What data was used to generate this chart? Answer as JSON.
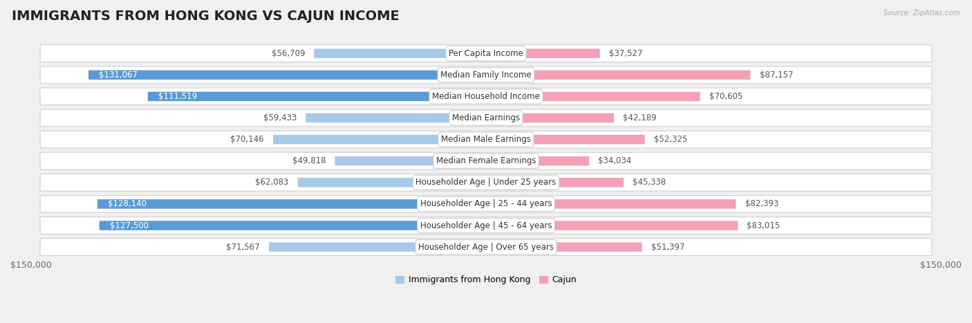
{
  "title": "IMMIGRANTS FROM HONG KONG VS CAJUN INCOME",
  "source": "Source: ZipAtlas.com",
  "categories": [
    "Per Capita Income",
    "Median Family Income",
    "Median Household Income",
    "Median Earnings",
    "Median Male Earnings",
    "Median Female Earnings",
    "Householder Age | Under 25 years",
    "Householder Age | 25 - 44 years",
    "Householder Age | 45 - 64 years",
    "Householder Age | Over 65 years"
  ],
  "hk_values": [
    56709,
    131067,
    111519,
    59433,
    70146,
    49818,
    62083,
    128140,
    127500,
    71567
  ],
  "cajun_values": [
    37527,
    87157,
    70605,
    42189,
    52325,
    34034,
    45338,
    82393,
    83015,
    51397
  ],
  "hk_labels": [
    "$56,709",
    "$131,067",
    "$111,519",
    "$59,433",
    "$70,146",
    "$49,818",
    "$62,083",
    "$128,140",
    "$127,500",
    "$71,567"
  ],
  "cajun_labels": [
    "$37,527",
    "$87,157",
    "$70,605",
    "$42,189",
    "$52,325",
    "$34,034",
    "$45,338",
    "$82,393",
    "$83,015",
    "$51,397"
  ],
  "hk_color_light": "#a8c8e8",
  "hk_color_dark": "#5b9bd5",
  "cajun_color_light": "#f4a0b8",
  "cajun_color_dark": "#e8557a",
  "max_value": 150000,
  "xlabel_left": "$150,000",
  "xlabel_right": "$150,000",
  "legend_hk": "Immigrants from Hong Kong",
  "legend_cajun": "Cajun",
  "background_color": "#f0f0f0",
  "row_bg_color": "#ffffff",
  "row_border_color": "#d0d0d0",
  "title_fontsize": 14,
  "label_fontsize": 8.5,
  "category_fontsize": 8.5,
  "hk_threshold": 100000,
  "cajun_threshold": 100000
}
